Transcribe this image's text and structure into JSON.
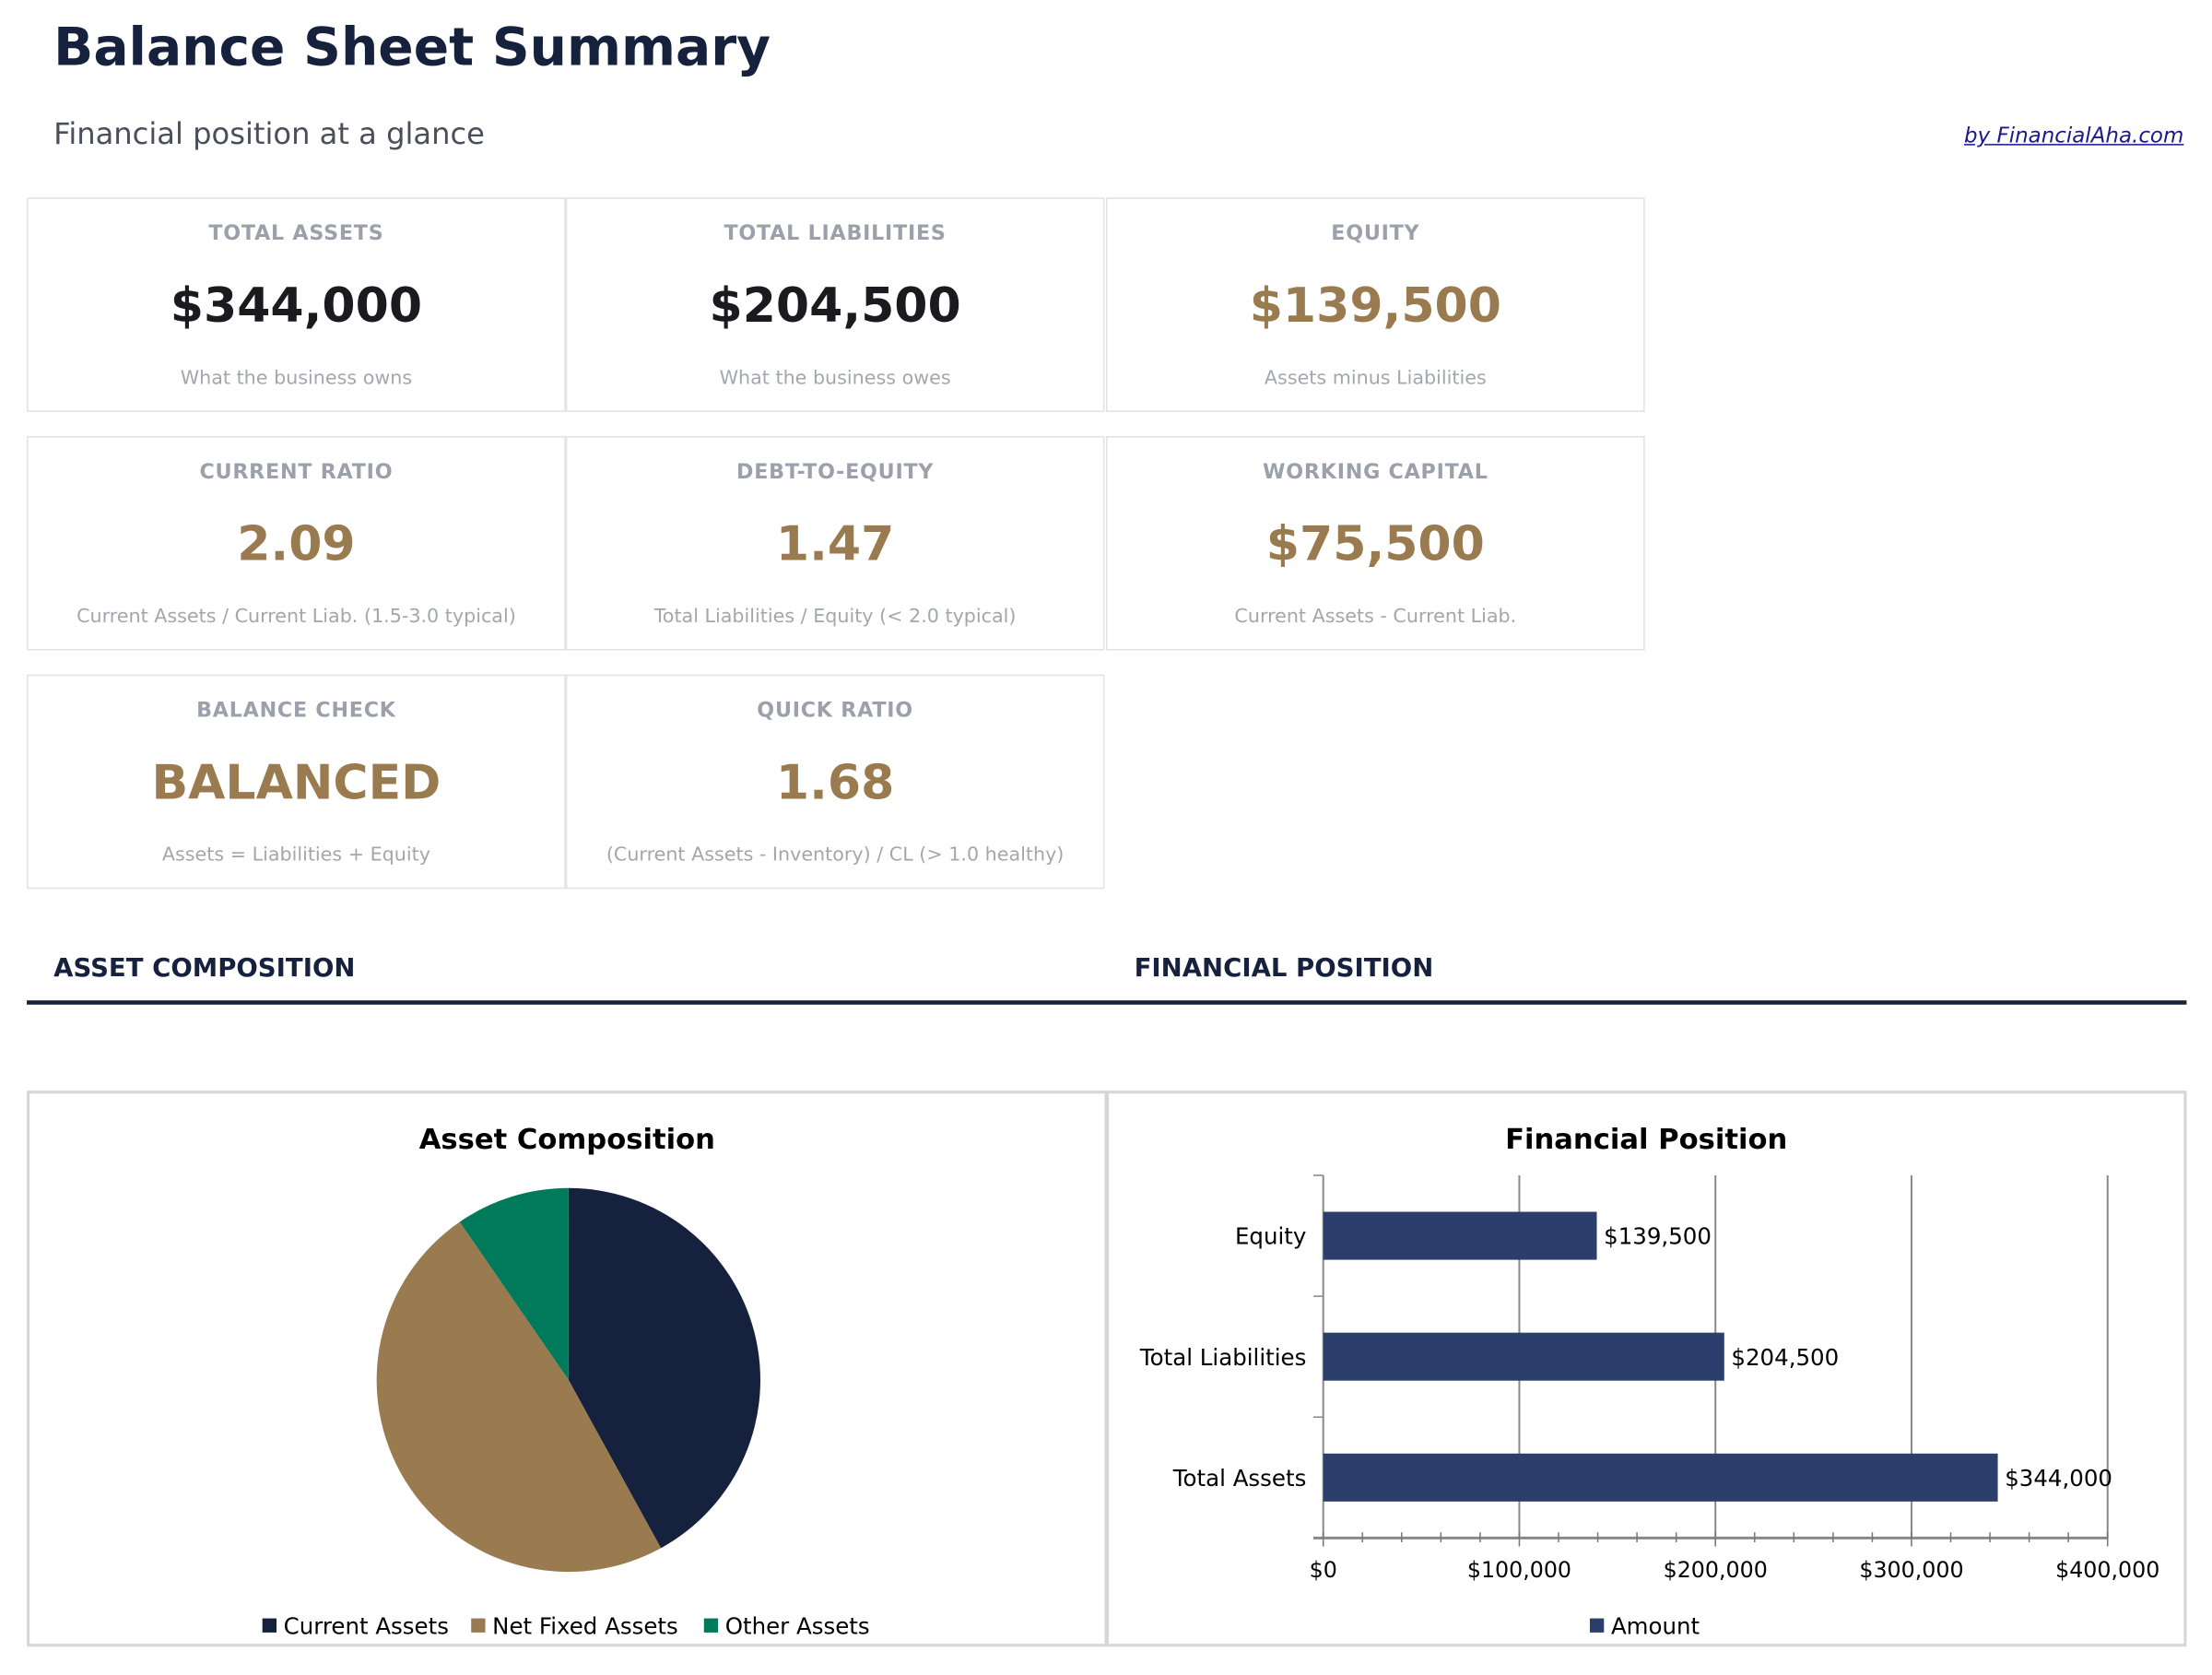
{
  "header": {
    "title": "Balance Sheet Summary",
    "subtitle": "Financial position at a glance",
    "credit": "by FinancialAha.com"
  },
  "cards": [
    {
      "label": "TOTAL ASSETS",
      "value": "$344,000",
      "sub": "What the business owns",
      "tone": "dark"
    },
    {
      "label": "TOTAL LIABILITIES",
      "value": "$204,500",
      "sub": "What the business owes",
      "tone": "dark"
    },
    {
      "label": "EQUITY",
      "value": "$139,500",
      "sub": "Assets minus Liabilities",
      "tone": "gold"
    },
    {
      "label": "CURRENT RATIO",
      "value": "2.09",
      "sub": "Current Assets / Current Liab. (1.5-3.0 typical)",
      "tone": "gold"
    },
    {
      "label": "DEBT-TO-EQUITY",
      "value": "1.47",
      "sub": "Total Liabilities / Equity (< 2.0 typical)",
      "tone": "gold"
    },
    {
      "label": "WORKING CAPITAL",
      "value": "$75,500",
      "sub": "Current Assets - Current Liab.",
      "tone": "gold"
    },
    {
      "label": "BALANCE CHECK",
      "value": "BALANCED",
      "sub": "Assets = Liabilities + Equity",
      "tone": "gold"
    },
    {
      "label": "QUICK RATIO",
      "value": "1.68",
      "sub": "(Current Assets - Inventory) / CL (> 1.0 healthy)",
      "tone": "gold"
    }
  ],
  "sections": {
    "left": "ASSET COMPOSITION",
    "right": "FINANCIAL POSITION"
  },
  "colors": {
    "navy": "#16213e",
    "gold": "#9a7b4f",
    "green": "#007a5a",
    "bar": "#2c3e6b"
  },
  "chart_data": [
    {
      "type": "pie",
      "title": "Asset Composition",
      "legend": "bottom",
      "series": [
        {
          "name": "Current Assets",
          "share_pct": 42,
          "color": "#16213e"
        },
        {
          "name": "Net Fixed Assets",
          "share_pct": 48.4,
          "color": "#9a7b4f"
        },
        {
          "name": "Other Assets",
          "share_pct": 9.6,
          "color": "#007a5a"
        }
      ]
    },
    {
      "type": "bar",
      "orientation": "horizontal",
      "title": "Financial Position",
      "legend": "bottom",
      "grid": true,
      "categories": [
        "Total Assets",
        "Total Liabilities",
        "Equity"
      ],
      "series": [
        {
          "name": "Amount",
          "values": [
            344000,
            204500,
            139500
          ],
          "labels": [
            "$344,000",
            "$204,500",
            "$139,500"
          ],
          "color": "#2c3e6b"
        }
      ],
      "xlim": [
        0,
        400000
      ],
      "xticks": [
        "$0",
        "$100,000",
        "$200,000",
        "$300,000",
        "$400,000"
      ]
    }
  ]
}
